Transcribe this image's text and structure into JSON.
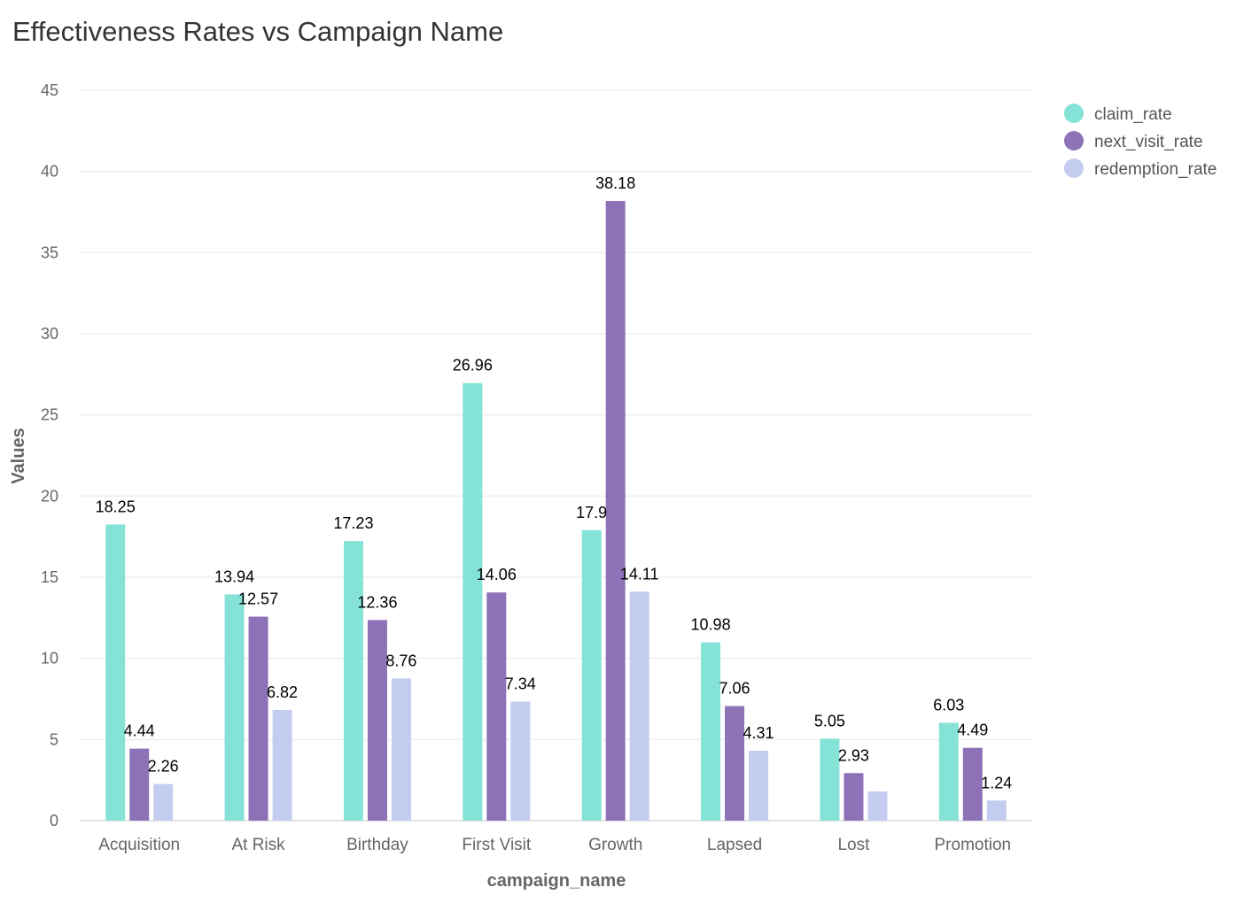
{
  "chart_data": {
    "type": "bar",
    "title": "Effectiveness Rates vs Campaign Name",
    "xlabel": "campaign_name",
    "ylabel": "Values",
    "ylim": [
      0,
      45
    ],
    "yticks": [
      0,
      5,
      10,
      15,
      20,
      25,
      30,
      35,
      40,
      45
    ],
    "grid": true,
    "legend_position": "top-right",
    "categories": [
      "Acquisition",
      "At Risk",
      "Birthday",
      "First Visit",
      "Growth",
      "Lapsed",
      "Lost",
      "Promotion"
    ],
    "series": [
      {
        "name": "claim_rate",
        "color": "#84e3d6",
        "values": [
          18.25,
          13.94,
          17.23,
          26.96,
          17.9,
          10.98,
          5.05,
          6.03
        ],
        "labels": [
          "18.25",
          "13.94",
          "17.23",
          "26.96",
          "17.9",
          "10.98",
          "5.05",
          "6.03"
        ]
      },
      {
        "name": "next_visit_rate",
        "color": "#8e72b8",
        "values": [
          4.44,
          12.57,
          12.36,
          14.06,
          38.18,
          7.06,
          2.93,
          4.49
        ],
        "labels": [
          "4.44",
          "12.57",
          "12.36",
          "14.06",
          "38.18",
          "7.06",
          "2.93",
          "4.49"
        ]
      },
      {
        "name": "redemption_rate",
        "color": "#c4cdf0",
        "values": [
          2.26,
          6.82,
          8.76,
          7.34,
          14.11,
          4.31,
          1.8,
          1.24
        ],
        "labels": [
          "2.26",
          "6.82",
          "8.76",
          "7.34",
          "14.11",
          "4.31",
          "",
          "1.24"
        ]
      }
    ]
  }
}
